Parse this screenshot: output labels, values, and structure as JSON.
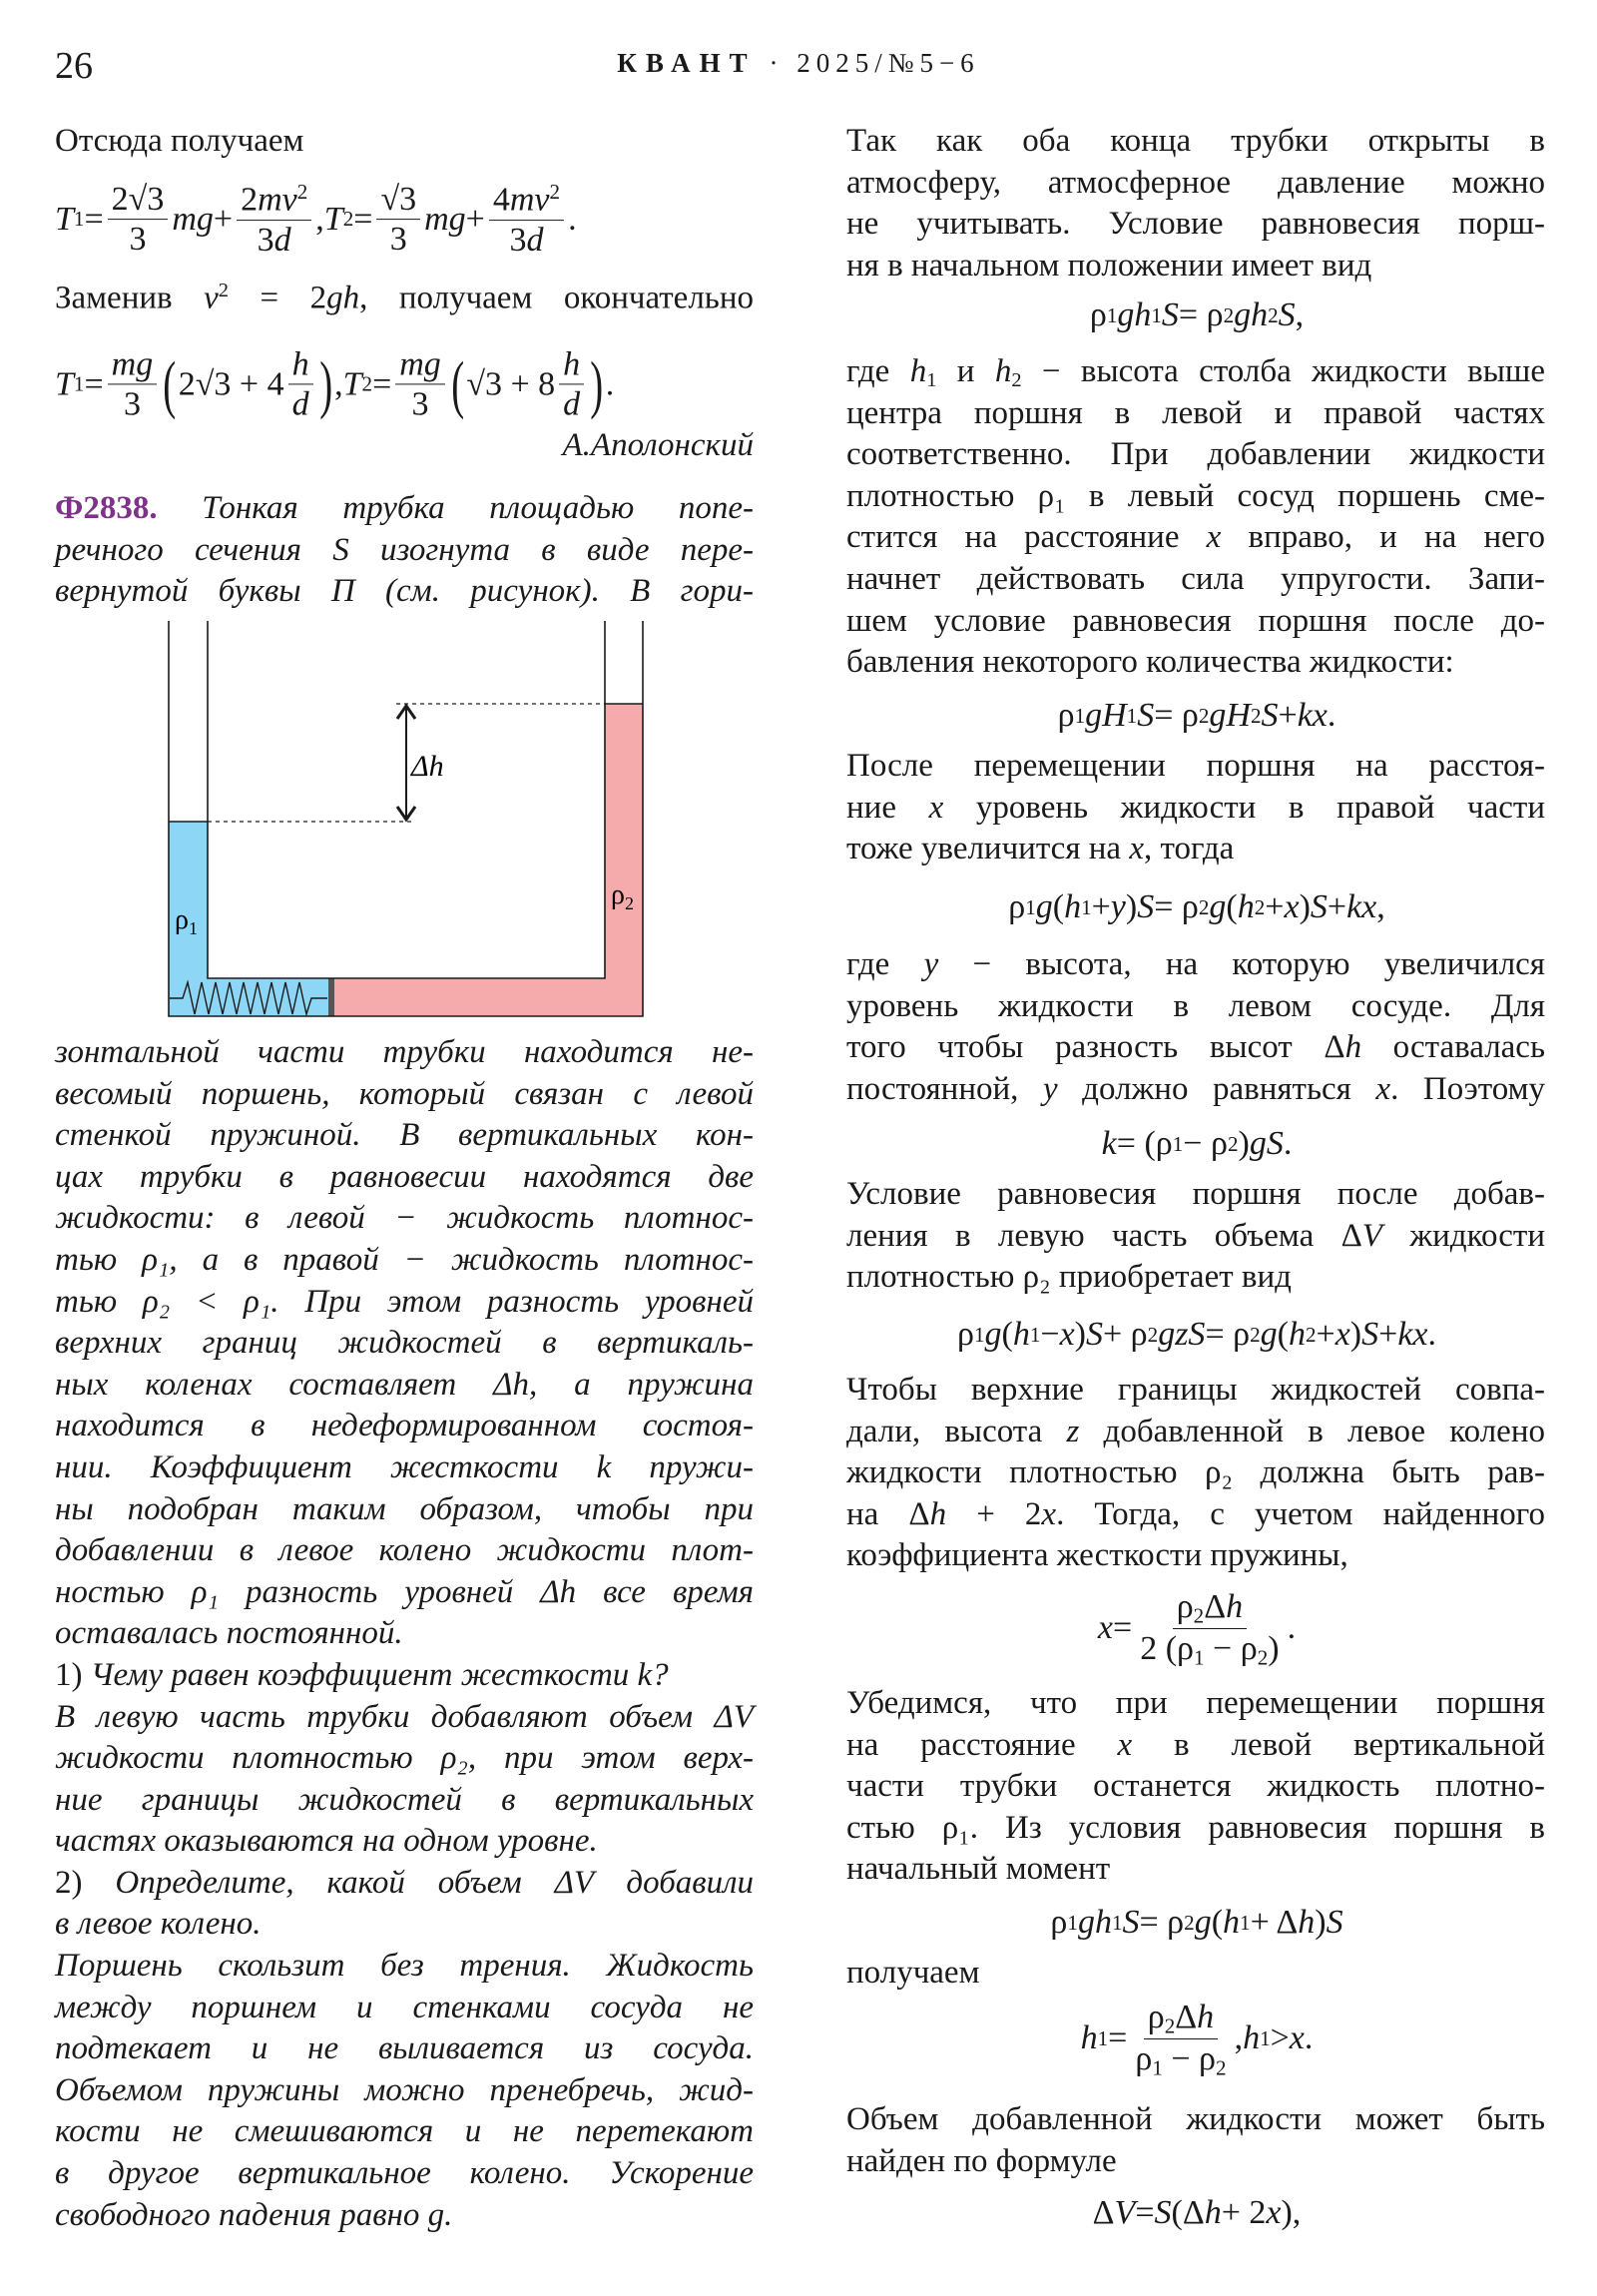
{
  "header": {
    "page_number": "26",
    "journal": "КВАНТ",
    "issue": "· 2025/№5−6"
  },
  "colors": {
    "liquid_1": "#8dd6f5",
    "liquid_2": "#f5aaab",
    "problem_number": "#7f3289"
  },
  "left": {
    "intro": [
      [
        "Отсюда получаем"
      ]
    ],
    "f1": [
      {
        "i": "T"
      },
      {
        "sub": "1"
      },
      " = ",
      {
        "frac": {
          "n": [
            "2√3"
          ],
          "d": [
            "3"
          ]
        }
      },
      {
        "i": "mg"
      },
      " + ",
      {
        "frac": {
          "n": [
            "2",
            {
              "i": "mv"
            },
            {
              "sup": "2"
            }
          ],
          "d": [
            "3",
            {
              "i": "d"
            }
          ]
        }
      },
      ", ",
      {
        "i": "T"
      },
      {
        "sub": "2"
      },
      " = ",
      {
        "frac": {
          "n": [
            "√3"
          ],
          "d": [
            "3"
          ]
        }
      },
      {
        "i": "mg"
      },
      " + ",
      {
        "frac": {
          "n": [
            "4",
            {
              "i": "mv"
            },
            {
              "sup": "2"
            }
          ],
          "d": [
            "3",
            {
              "i": "d"
            }
          ]
        }
      },
      "."
    ],
    "replace": [
      [
        [
          "Заменив ",
          {
            "i": "v"
          },
          {
            "sup": "2"
          },
          " = 2",
          {
            "i": "gh"
          },
          ", получаем окончательно"
        ]
      ]
    ],
    "f2": [
      {
        "i": "T"
      },
      {
        "sub": "1"
      },
      " = ",
      {
        "frac": {
          "n": [
            {
              "i": "mg"
            }
          ],
          "d": [
            "3"
          ]
        }
      },
      {
        "big": "("
      },
      "2√3 + 4",
      {
        "frac": {
          "n": [
            {
              "i": "h"
            }
          ],
          "d": [
            {
              "i": "d"
            }
          ]
        }
      },
      {
        "big": ")"
      },
      ", ",
      {
        "i": "T"
      },
      {
        "sub": "2"
      },
      " = ",
      {
        "frac": {
          "n": [
            {
              "i": "mg"
            }
          ],
          "d": [
            "3"
          ]
        }
      },
      {
        "big": "("
      },
      "√3 + 8",
      {
        "frac": {
          "n": [
            {
              "i": "h"
            }
          ],
          "d": [
            {
              "i": "d"
            }
          ]
        }
      },
      {
        "big": ")"
      },
      "."
    ],
    "signature": "А.Аполонский",
    "problem_head": [
      [
        [
          {
            "b": "Ф2838."
          },
          " Тонкая трубка площадью попе-"
        ],
        "речного сечения S изогнута в виде пере-",
        "вернутой буквы П (см. рисунок). В гори-"
      ]
    ],
    "diagram": {
      "rho1": "ρ",
      "rho1_sub": "1",
      "rho2": "ρ",
      "rho2_sub": "2",
      "delta_h": "Δh"
    },
    "problem_body": [
      [
        "зонтальной части трубки находится не-",
        "весомый поршень, который связан с левой",
        "стенкой пружиной. В вертикальных кон-",
        "цах трубки в равновесии находятся две",
        "жидкости: в левой − жидкость плотнос-",
        "тью ρ₁, а в правой − жидкость плотнос-",
        "тью ρ₂ < ρ₁. При этом разность уровней",
        "верхних границ жидкостей в вертикаль-",
        "ных коленах составляет Δh, а пружина",
        "находится в недеформированном состоя-",
        "нии. Коэффициент жесткости k пружи-",
        "ны подобран таким образом, чтобы при",
        "добавлении в левое колено жидкости плот-",
        "ностью ρ₁ разность уровней Δh все время",
        "оставалась постоянной."
      ],
      [
        [
          {
            "r": "1)"
          },
          " Чему равен коэффициент жесткости k?"
        ]
      ],
      [
        "В левую часть трубки добавляют объем ΔV",
        "жидкости плотностью ρ₂, при этом верх-",
        "ние границы жидкостей в вертикальных",
        "частях оказываются на одном уровне."
      ],
      [
        [
          {
            "r": "2)"
          },
          " Определите, какой объем ΔV добавили"
        ],
        "в левое колено."
      ],
      [
        "Поршень скользит без трения. Жидкость",
        "между поршнем и стенками сосуда не",
        "подтекает и не выливается из сосуда.",
        "Объемом пружины можно пренебречь, жид-",
        "кости не смешиваются и не перетекают",
        "в другое вертикальное колено. Ускорение",
        "свободного падения равно g."
      ]
    ]
  },
  "right": {
    "p1": [
      [
        "Так как оба конца трубки открыты в",
        "атмосферу, атмосферное давление можно",
        "не учитывать. Условие равновесия порш-",
        "ня в начальном положении имеет вид"
      ]
    ],
    "f1": [
      "ρ",
      {
        "sub": "1"
      },
      {
        "i": "gh"
      },
      {
        "sub": "1"
      },
      {
        "i": "S"
      },
      " = ρ",
      {
        "sub": "2"
      },
      {
        "i": "gh"
      },
      {
        "sub": "2"
      },
      {
        "i": "S"
      },
      ","
    ],
    "p2": [
      [
        [
          "где ",
          {
            "i": "h"
          },
          {
            "sub": "1"
          },
          " и ",
          {
            "i": "h"
          },
          {
            "sub": "2"
          },
          " − высота столба жидкости выше"
        ],
        "центра поршня в левой и правой частях",
        "соответственно. При добавлении жидкости",
        "плотностью ρ₁ в левый сосуд поршень сме-",
        [
          "стится на расстояние ",
          {
            "i": "x"
          },
          " вправо, и на него"
        ],
        "начнет действовать сила упругости. Запи-",
        "шем условие равновесия поршня после до-",
        "бавления некоторого количества жидкости:"
      ]
    ],
    "f2": [
      "ρ",
      {
        "sub": "1"
      },
      {
        "i": "gH"
      },
      {
        "sub": "1"
      },
      {
        "i": "S"
      },
      " = ρ",
      {
        "sub": "2"
      },
      {
        "i": "gH"
      },
      {
        "sub": "2"
      },
      {
        "i": "S"
      },
      " + ",
      {
        "i": "kx"
      },
      "."
    ],
    "p3": [
      [
        "После перемещении поршня на расстоя-",
        [
          "ние ",
          {
            "i": "x"
          },
          " уровень жидкости в правой части"
        ],
        [
          "тоже увеличится на ",
          {
            "i": "x"
          },
          ", тогда"
        ]
      ]
    ],
    "f3": [
      "ρ",
      {
        "sub": "1"
      },
      {
        "i": "g"
      },
      " (",
      {
        "i": "h"
      },
      {
        "sub": "1"
      },
      " + ",
      {
        "i": "y"
      },
      ") ",
      {
        "i": "S"
      },
      " = ρ",
      {
        "sub": "2"
      },
      {
        "i": "g"
      },
      " (",
      {
        "i": "h"
      },
      {
        "sub": "2"
      },
      " + ",
      {
        "i": "x"
      },
      ") ",
      {
        "i": "S"
      },
      " + ",
      {
        "i": "kx"
      },
      ","
    ],
    "p4": [
      [
        [
          "где ",
          {
            "i": "y"
          },
          " − высота, на которую увеличился"
        ],
        "уровень жидкости в левом сосуде. Для",
        [
          "того чтобы разность высот Δ",
          {
            "i": "h"
          },
          " оставалась"
        ],
        [
          "постоянной, ",
          {
            "i": "y"
          },
          " должно равняться ",
          {
            "i": "x"
          },
          ". Поэтому"
        ]
      ]
    ],
    "f4": [
      {
        "i": "k"
      },
      " = (ρ",
      {
        "sub": "1"
      },
      " − ρ",
      {
        "sub": "2"
      },
      ") ",
      {
        "i": "gS"
      },
      "."
    ],
    "p5": [
      [
        "Условие равновесия поршня после добав-",
        [
          "ления в левую часть объема Δ",
          {
            "i": "V"
          },
          " жидкости"
        ],
        "плотностью ρ₂ приобретает вид"
      ]
    ],
    "f5": [
      "ρ",
      {
        "sub": "1"
      },
      {
        "i": "g"
      },
      " (",
      {
        "i": "h"
      },
      {
        "sub": "1"
      },
      " − ",
      {
        "i": "x"
      },
      ") ",
      {
        "i": "S"
      },
      " + ρ",
      {
        "sub": "2"
      },
      {
        "i": "gzS"
      },
      " = ρ",
      {
        "sub": "2"
      },
      {
        "i": "g"
      },
      " (",
      {
        "i": "h"
      },
      {
        "sub": "2"
      },
      " + ",
      {
        "i": "x"
      },
      ") ",
      {
        "i": "S"
      },
      " + ",
      {
        "i": "kx"
      },
      "."
    ],
    "p6": [
      [
        "Чтобы верхние границы жидкостей совпа-",
        [
          "дали, высота ",
          {
            "i": "z"
          },
          " добавленной в левое колено"
        ],
        "жидкости плотностью ρ₂ должна быть рав-",
        [
          "на Δ",
          {
            "i": "h"
          },
          " + 2",
          {
            "i": "x"
          },
          ". Тогда, с учетом найденного"
        ],
        "коэффициента жесткости пружины,"
      ]
    ],
    "f6": [
      {
        "i": "x"
      },
      " = ",
      {
        "frac": {
          "n": [
            "ρ",
            {
              "sub": "2"
            },
            "Δ",
            {
              "i": "h"
            }
          ],
          "d": [
            "2 (ρ",
            {
              "sub": "1"
            },
            " − ρ",
            {
              "sub": "2"
            },
            ")"
          ]
        }
      },
      "."
    ],
    "p7": [
      [
        "Убедимся, что при перемещении поршня",
        [
          "на расстояние ",
          {
            "i": "x"
          },
          " в левой вертикальной"
        ],
        "части трубки останется жидкость плотно-",
        "стью ρ₁. Из условия равновесия поршня в",
        "начальный момент"
      ]
    ],
    "f7": [
      "ρ",
      {
        "sub": "1"
      },
      {
        "i": "gh"
      },
      {
        "sub": "1"
      },
      {
        "i": "S"
      },
      " = ρ",
      {
        "sub": "2"
      },
      {
        "i": "g"
      },
      " (",
      {
        "i": "h"
      },
      {
        "sub": "1"
      },
      " + Δ",
      {
        "i": "h"
      },
      ") ",
      {
        "i": "S"
      }
    ],
    "p8": [
      [
        "получаем"
      ]
    ],
    "f8": [
      {
        "i": "h"
      },
      {
        "sub": "1"
      },
      " = ",
      {
        "frac": {
          "n": [
            "ρ",
            {
              "sub": "2"
            },
            "Δ",
            {
              "i": "h"
            }
          ],
          "d": [
            "ρ",
            {
              "sub": "1"
            },
            " − ρ",
            {
              "sub": "2"
            }
          ]
        }
      },
      ", ",
      {
        "i": "h"
      },
      {
        "sub": "1"
      },
      " > ",
      {
        "i": "x"
      },
      "."
    ],
    "p9": [
      [
        "Объем добавленной жидкости может быть",
        "найден по формуле"
      ]
    ],
    "f9": [
      "Δ",
      {
        "i": "V"
      },
      " = ",
      {
        "i": "S"
      },
      " (Δ",
      {
        "i": "h"
      },
      " + 2",
      {
        "i": "x"
      },
      "),"
    ]
  }
}
